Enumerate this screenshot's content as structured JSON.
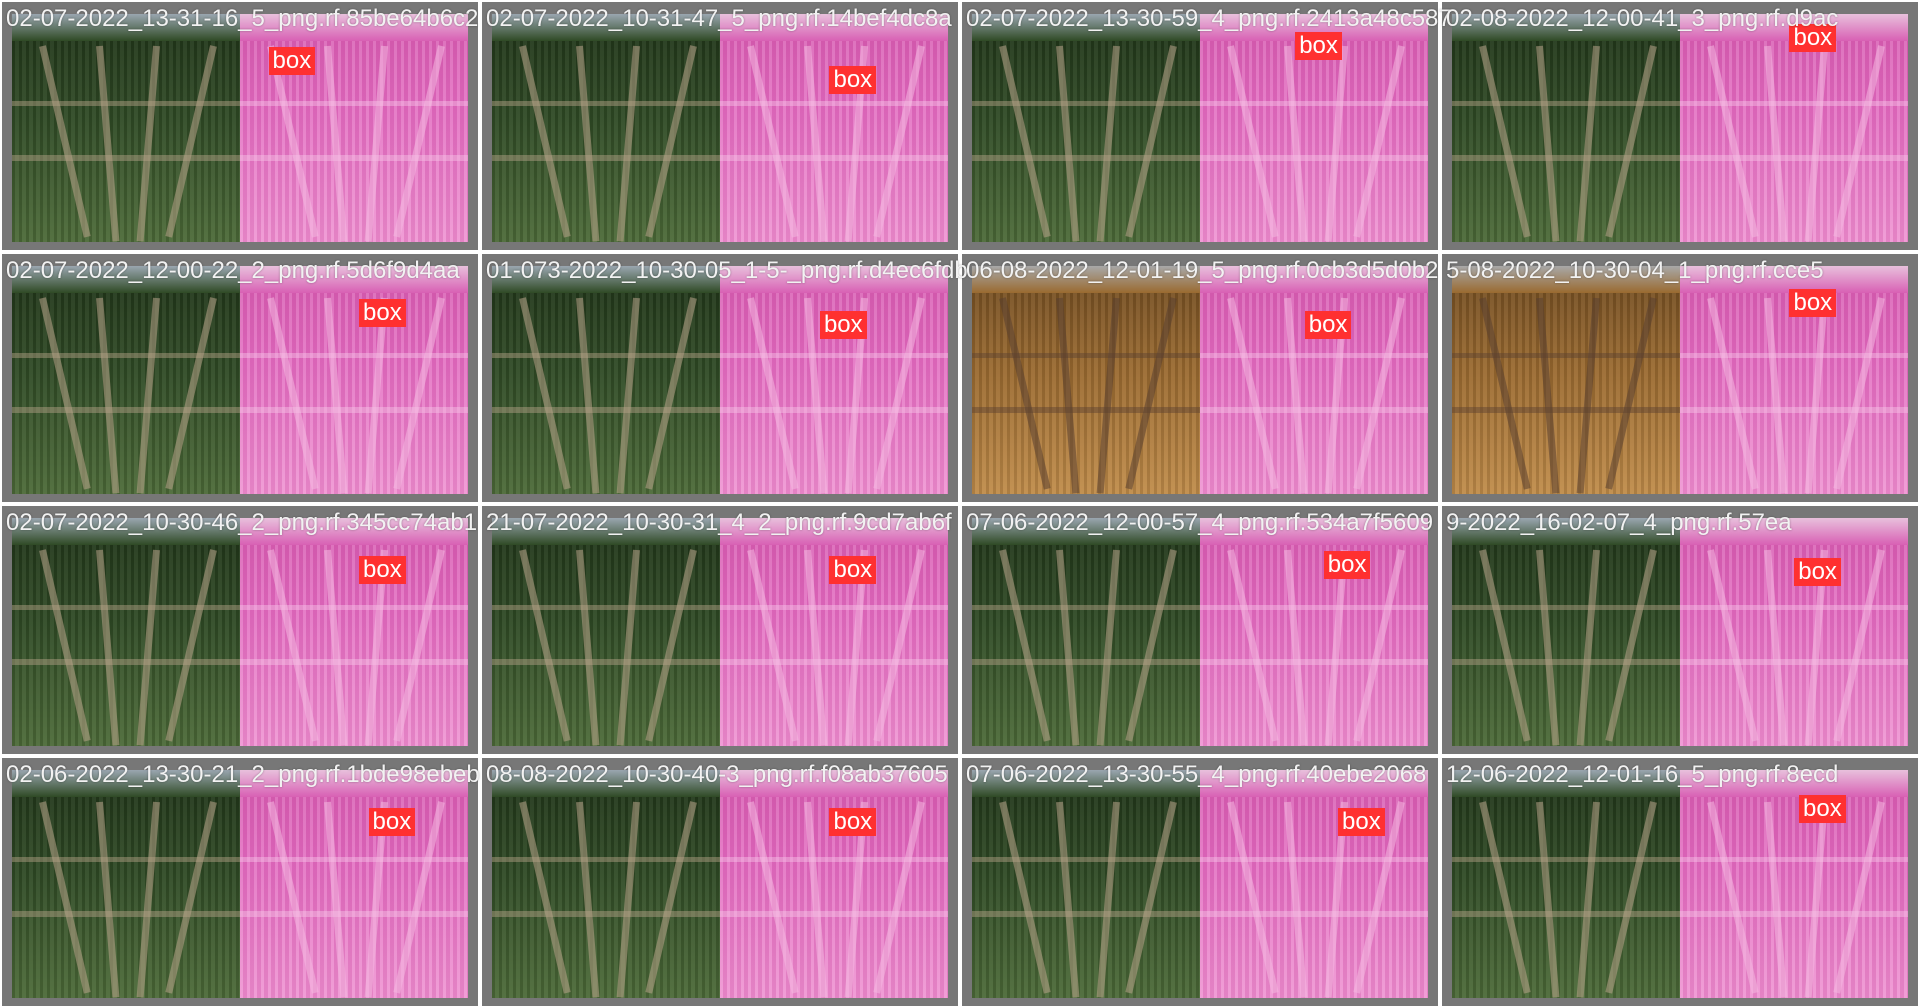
{
  "colors": {
    "frame": "#777777",
    "box_label_bg": "#ff3030",
    "overlay_pink": "#e060b8"
  },
  "tiles": [
    {
      "file": "02-07-2022_13-31-16_5_png.rf.85be64b6c2",
      "label": "box",
      "left_tone": "green",
      "label_pos": [
        0.56,
        0.18
      ]
    },
    {
      "file": "02-07-2022_10-31-47_5_png.rf.14bef4dc8a",
      "label": "box",
      "left_tone": "green",
      "label_pos": [
        0.73,
        0.26
      ]
    },
    {
      "file": "02-07-2022_13-30-59_4_png.rf.2413a48c587",
      "label": "box",
      "left_tone": "green",
      "label_pos": [
        0.7,
        0.12
      ]
    },
    {
      "file": "02-08-2022_12-00-41_3_png.rf.d9ac",
      "label": "box",
      "left_tone": "green",
      "label_pos": [
        0.73,
        0.09
      ]
    },
    {
      "file": "02-07-2022_12-00-22_2_png.rf.5d6f9d4aa",
      "label": "box",
      "left_tone": "green",
      "label_pos": [
        0.75,
        0.18
      ]
    },
    {
      "file": "01-073-2022_10-30-05_1-5-_png.rf.d4ec6fdb",
      "label": "box",
      "left_tone": "green",
      "label_pos": [
        0.71,
        0.23
      ]
    },
    {
      "file": "06-08-2022_12-01-19_5_png.rf.0cb3d5d0b2",
      "label": "box",
      "left_tone": "brown",
      "label_pos": [
        0.72,
        0.23
      ]
    },
    {
      "file": "5-08-2022_10-30-04_1_png.rf.cce5",
      "label": "box",
      "left_tone": "brown",
      "label_pos": [
        0.73,
        0.14
      ]
    },
    {
      "file": "02-07-2022_10-30-46_2_png.rf.345cc74ab1",
      "label": "box",
      "left_tone": "green",
      "label_pos": [
        0.75,
        0.2
      ]
    },
    {
      "file": "21-07-2022_10-30-31_4_2_png.rf.9cd7ab6f",
      "label": "box",
      "left_tone": "green",
      "label_pos": [
        0.73,
        0.2
      ]
    },
    {
      "file": "07-06-2022_12-00-57_4_png.rf.534a7f5609",
      "label": "box",
      "left_tone": "green",
      "label_pos": [
        0.76,
        0.18
      ]
    },
    {
      "file": "9-2022_16-02-07_4_png.rf.57ea",
      "label": "box",
      "left_tone": "green",
      "label_pos": [
        0.74,
        0.21
      ]
    },
    {
      "file": "02-06-2022_13-30-21_2_png.rf.1bde98ebeb",
      "label": "box",
      "left_tone": "green",
      "label_pos": [
        0.77,
        0.2
      ]
    },
    {
      "file": "08-08-2022_10-30-40-3_png.rf.f08ab37605",
      "label": "box",
      "left_tone": "green",
      "label_pos": [
        0.73,
        0.2
      ]
    },
    {
      "file": "07-06-2022_13-30-55_4_png.rf.40ebe2068",
      "label": "box",
      "left_tone": "green",
      "label_pos": [
        0.79,
        0.2
      ]
    },
    {
      "file": "12-06-2022_12-01-16_5_png.rf.8ecd",
      "label": "box",
      "left_tone": "green",
      "label_pos": [
        0.75,
        0.15
      ]
    }
  ]
}
